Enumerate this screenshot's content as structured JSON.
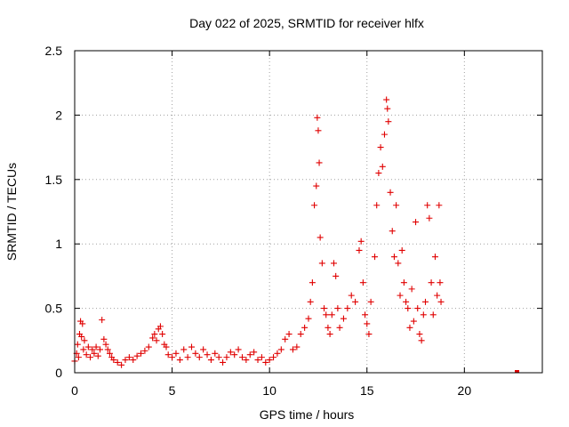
{
  "chart_data": {
    "type": "scatter",
    "title": "Day 022 of 2025, SRMTID for receiver hlfx",
    "xlabel": "GPS time / hours",
    "ylabel": "SRMTID / TECUs",
    "xlim": [
      0,
      24
    ],
    "ylim": [
      0,
      2.5
    ],
    "xticks": [
      0,
      5,
      10,
      15,
      20
    ],
    "yticks": [
      0,
      0.5,
      1,
      1.5,
      2,
      2.5
    ],
    "xtick_labels": [
      "0",
      "5",
      "10",
      "15",
      "20"
    ],
    "ytick_labels": [
      "0",
      "0.5",
      "1",
      "1.5",
      "2",
      "2.5"
    ],
    "grid": true,
    "marker": "+",
    "marker_color": "#e00000",
    "series": [
      {
        "name": "SRMTID",
        "points": [
          [
            0.0,
            0.09
          ],
          [
            0.1,
            0.15
          ],
          [
            0.15,
            0.22
          ],
          [
            0.2,
            0.12
          ],
          [
            0.25,
            0.3
          ],
          [
            0.3,
            0.4
          ],
          [
            0.35,
            0.28
          ],
          [
            0.4,
            0.38
          ],
          [
            0.45,
            0.18
          ],
          [
            0.5,
            0.25
          ],
          [
            0.6,
            0.14
          ],
          [
            0.7,
            0.2
          ],
          [
            0.8,
            0.12
          ],
          [
            0.9,
            0.18
          ],
          [
            1.0,
            0.15
          ],
          [
            1.1,
            0.2
          ],
          [
            1.2,
            0.13
          ],
          [
            1.3,
            0.18
          ],
          [
            1.4,
            0.41
          ],
          [
            1.5,
            0.26
          ],
          [
            1.6,
            0.22
          ],
          [
            1.7,
            0.18
          ],
          [
            1.8,
            0.15
          ],
          [
            1.9,
            0.12
          ],
          [
            2.0,
            0.1
          ],
          [
            2.2,
            0.08
          ],
          [
            2.4,
            0.06
          ],
          [
            2.6,
            0.1
          ],
          [
            2.8,
            0.12
          ],
          [
            3.0,
            0.1
          ],
          [
            3.2,
            0.13
          ],
          [
            3.4,
            0.15
          ],
          [
            3.6,
            0.17
          ],
          [
            3.8,
            0.2
          ],
          [
            4.0,
            0.27
          ],
          [
            4.1,
            0.3
          ],
          [
            4.2,
            0.25
          ],
          [
            4.3,
            0.34
          ],
          [
            4.4,
            0.36
          ],
          [
            4.5,
            0.3
          ],
          [
            4.6,
            0.22
          ],
          [
            4.7,
            0.2
          ],
          [
            4.8,
            0.14
          ],
          [
            5.0,
            0.12
          ],
          [
            5.2,
            0.15
          ],
          [
            5.4,
            0.1
          ],
          [
            5.6,
            0.18
          ],
          [
            5.8,
            0.12
          ],
          [
            6.0,
            0.2
          ],
          [
            6.2,
            0.15
          ],
          [
            6.4,
            0.12
          ],
          [
            6.6,
            0.18
          ],
          [
            6.8,
            0.14
          ],
          [
            7.0,
            0.1
          ],
          [
            7.2,
            0.15
          ],
          [
            7.4,
            0.12
          ],
          [
            7.6,
            0.08
          ],
          [
            7.8,
            0.12
          ],
          [
            8.0,
            0.16
          ],
          [
            8.2,
            0.14
          ],
          [
            8.4,
            0.18
          ],
          [
            8.6,
            0.12
          ],
          [
            8.8,
            0.1
          ],
          [
            9.0,
            0.14
          ],
          [
            9.2,
            0.16
          ],
          [
            9.4,
            0.1
          ],
          [
            9.6,
            0.12
          ],
          [
            9.8,
            0.08
          ],
          [
            10.0,
            0.1
          ],
          [
            10.2,
            0.12
          ],
          [
            10.4,
            0.15
          ],
          [
            10.6,
            0.18
          ],
          [
            10.8,
            0.26
          ],
          [
            11.0,
            0.3
          ],
          [
            11.2,
            0.18
          ],
          [
            11.4,
            0.2
          ],
          [
            11.6,
            0.3
          ],
          [
            11.8,
            0.35
          ],
          [
            12.0,
            0.42
          ],
          [
            12.1,
            0.55
          ],
          [
            12.2,
            0.7
          ],
          [
            12.3,
            1.3
          ],
          [
            12.4,
            1.45
          ],
          [
            12.45,
            1.98
          ],
          [
            12.5,
            1.88
          ],
          [
            12.55,
            1.63
          ],
          [
            12.6,
            1.05
          ],
          [
            12.7,
            0.85
          ],
          [
            12.8,
            0.5
          ],
          [
            12.9,
            0.45
          ],
          [
            13.0,
            0.35
          ],
          [
            13.1,
            0.3
          ],
          [
            13.2,
            0.45
          ],
          [
            13.3,
            0.85
          ],
          [
            13.4,
            0.75
          ],
          [
            13.5,
            0.5
          ],
          [
            13.6,
            0.35
          ],
          [
            13.8,
            0.42
          ],
          [
            14.0,
            0.5
          ],
          [
            14.2,
            0.6
          ],
          [
            14.4,
            0.55
          ],
          [
            14.6,
            0.95
          ],
          [
            14.7,
            1.02
          ],
          [
            14.8,
            0.7
          ],
          [
            14.9,
            0.45
          ],
          [
            15.0,
            0.38
          ],
          [
            15.1,
            0.3
          ],
          [
            15.2,
            0.55
          ],
          [
            15.4,
            0.9
          ],
          [
            15.5,
            1.3
          ],
          [
            15.6,
            1.55
          ],
          [
            15.7,
            1.75
          ],
          [
            15.8,
            1.6
          ],
          [
            15.9,
            1.85
          ],
          [
            16.0,
            2.12
          ],
          [
            16.05,
            2.05
          ],
          [
            16.1,
            1.95
          ],
          [
            16.2,
            1.4
          ],
          [
            16.3,
            1.1
          ],
          [
            16.4,
            0.9
          ],
          [
            16.5,
            1.3
          ],
          [
            16.6,
            0.85
          ],
          [
            16.7,
            0.6
          ],
          [
            16.8,
            0.95
          ],
          [
            16.9,
            0.7
          ],
          [
            17.0,
            0.55
          ],
          [
            17.1,
            0.5
          ],
          [
            17.2,
            0.35
          ],
          [
            17.3,
            0.65
          ],
          [
            17.4,
            0.4
          ],
          [
            17.5,
            1.17
          ],
          [
            17.6,
            0.5
          ],
          [
            17.7,
            0.3
          ],
          [
            17.8,
            0.25
          ],
          [
            17.9,
            0.45
          ],
          [
            18.0,
            0.55
          ],
          [
            18.1,
            1.3
          ],
          [
            18.2,
            1.2
          ],
          [
            18.3,
            0.7
          ],
          [
            18.4,
            0.45
          ],
          [
            18.5,
            0.9
          ],
          [
            18.6,
            0.6
          ],
          [
            18.7,
            1.3
          ],
          [
            18.75,
            0.7
          ],
          [
            18.8,
            0.55
          ],
          [
            22.7,
            0.0
          ]
        ]
      }
    ]
  }
}
